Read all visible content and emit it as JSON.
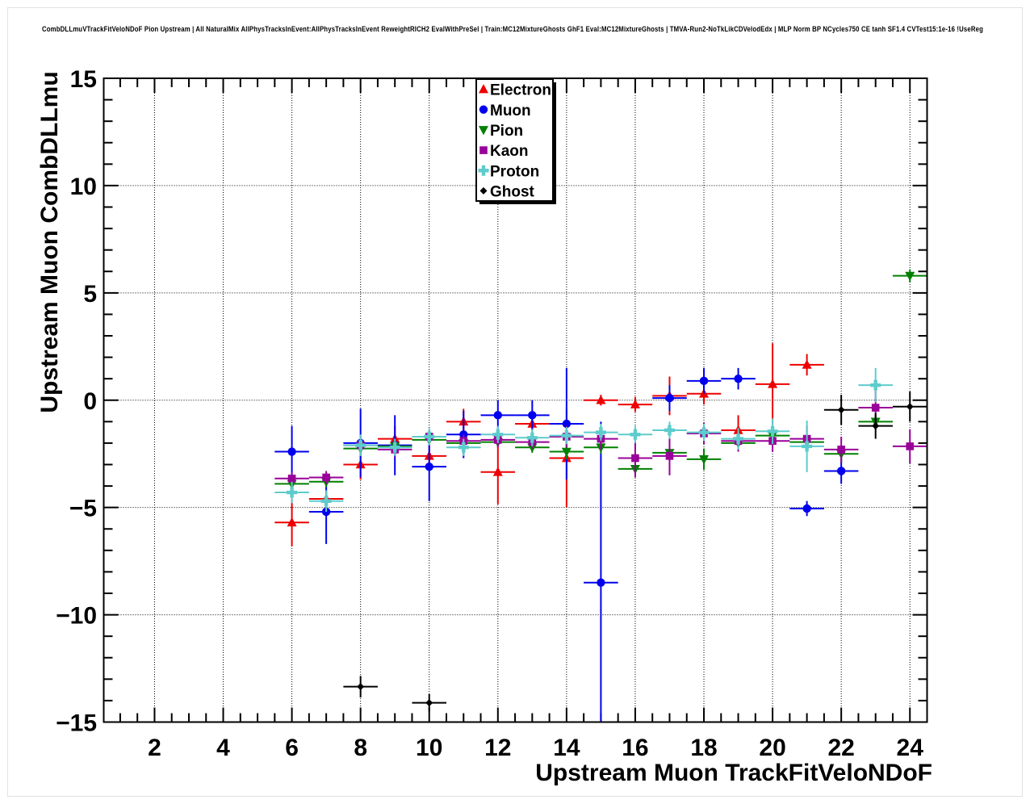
{
  "title": "CombDLLmuVTrackFitVeloNDoF Pion Upstream | All NaturalMix AllPhysTracksInEvent:AllPhysTracksInEvent ReweightRICH2 EvalWithPreSel | Train:MC12MixtureGhosts GhF1 Eval:MC12MixtureGhosts | TMVA-Run2-NoTkLikCDVelodEdx | MLP Norm BP NCycles750 CE tanh SF1.4 CVTest15:1e-16 !UseReg",
  "chart_data": {
    "type": "scatter",
    "title": "CombDLLmuVTrackFitVeloNDoF Pion Upstream",
    "xlabel": "Upstream Muon TrackFitVeloNDoF",
    "ylabel": "Upstream Muon CombDLLmu",
    "xlim": [
      0.52,
      24.5
    ],
    "ylim": [
      -15,
      15
    ],
    "x_major_ticks": [
      2,
      4,
      6,
      8,
      10,
      12,
      14,
      16,
      18,
      20,
      22,
      24
    ],
    "x_tick_labels": [
      "2",
      "4",
      "6",
      "8",
      "10",
      "12",
      "14",
      "16",
      "18",
      "20",
      "22",
      "24"
    ],
    "x_minor_step": 0.5,
    "y_major_ticks": [
      -15,
      -10,
      -5,
      0,
      5,
      10,
      15
    ],
    "y_tick_labels": [
      "−15",
      "−10",
      "−5",
      "0",
      "5",
      "10",
      "15"
    ],
    "y_minor_step": 1,
    "grid": "dotted",
    "x_bin_halfwidth": 0.5,
    "legend_position": "top-center",
    "legend_entries": [
      "Electron",
      "Muon",
      "Pion",
      "Kaon",
      "Proton",
      "Ghost"
    ],
    "series": [
      {
        "name": "Electron",
        "color": "#ee0000",
        "marker": "triangle-up",
        "points": [
          [
            6,
            -5.7,
            1.1
          ],
          [
            7,
            -4.6,
            0.4
          ],
          [
            8,
            -3.0,
            0.7
          ],
          [
            9,
            -1.8,
            0.6
          ],
          [
            10,
            -2.6,
            0.5
          ],
          [
            11,
            -1.0,
            0.6
          ],
          [
            12,
            -3.35,
            1.5
          ],
          [
            13,
            -1.1,
            0.6
          ],
          [
            14,
            -2.7,
            2.3
          ],
          [
            15,
            0.0,
            0.25
          ],
          [
            16,
            -0.2,
            0.35
          ],
          [
            17,
            0.2,
            0.9
          ],
          [
            18,
            0.3,
            0.5
          ],
          [
            19,
            -1.4,
            0.7
          ],
          [
            20,
            0.75,
            1.9
          ],
          [
            21,
            1.65,
            0.5
          ]
        ]
      },
      {
        "name": "Muon",
        "color": "#0000ee",
        "marker": "circle",
        "points": [
          [
            6,
            -2.4,
            1.2
          ],
          [
            7,
            -5.2,
            1.5
          ],
          [
            8,
            -2.0,
            1.6
          ],
          [
            9,
            -2.1,
            1.4
          ],
          [
            10,
            -3.1,
            1.6
          ],
          [
            11,
            -1.6,
            1.1
          ],
          [
            12,
            -0.7,
            0.7
          ],
          [
            13,
            -0.7,
            0.7
          ],
          [
            14,
            -1.1,
            2.6
          ],
          [
            15,
            -8.5,
            7.5
          ],
          [
            17,
            0.1,
            0.6
          ],
          [
            18,
            0.9,
            0.6
          ],
          [
            19,
            1.0,
            0.5
          ],
          [
            21,
            -5.05,
            0.35
          ],
          [
            22,
            -3.3,
            0.6
          ]
        ]
      },
      {
        "name": "Pion",
        "color": "#008000",
        "marker": "triangle-down",
        "points": [
          [
            6,
            -3.9,
            0.3
          ],
          [
            7,
            -3.8,
            0.25
          ],
          [
            8,
            -2.25,
            0.3
          ],
          [
            9,
            -2.15,
            0.2
          ],
          [
            10,
            -1.85,
            0.2
          ],
          [
            11,
            -2.0,
            0.2
          ],
          [
            12,
            -1.95,
            0.2
          ],
          [
            13,
            -2.2,
            0.25
          ],
          [
            14,
            -2.4,
            0.35
          ],
          [
            15,
            -2.2,
            0.3
          ],
          [
            16,
            -3.2,
            0.4
          ],
          [
            17,
            -2.45,
            0.4
          ],
          [
            18,
            -2.75,
            0.5
          ],
          [
            19,
            -2.0,
            0.3
          ],
          [
            20,
            -1.65,
            0.3
          ],
          [
            21,
            -1.95,
            0.3
          ],
          [
            22,
            -2.5,
            0.4
          ],
          [
            23,
            -1.0,
            0.35
          ],
          [
            24,
            5.8,
            0.3
          ]
        ]
      },
      {
        "name": "Kaon",
        "color": "#990099",
        "marker": "square",
        "points": [
          [
            6,
            -3.65,
            0.3
          ],
          [
            7,
            -3.6,
            0.3
          ],
          [
            8,
            -2.1,
            0.4
          ],
          [
            9,
            -2.3,
            0.35
          ],
          [
            10,
            -1.7,
            0.3
          ],
          [
            11,
            -1.9,
            0.3
          ],
          [
            12,
            -1.85,
            0.35
          ],
          [
            13,
            -1.95,
            0.3
          ],
          [
            14,
            -1.7,
            0.5
          ],
          [
            15,
            -1.8,
            0.5
          ],
          [
            16,
            -2.7,
            0.9
          ],
          [
            17,
            -2.6,
            0.9
          ],
          [
            18,
            -1.55,
            0.5
          ],
          [
            19,
            -1.9,
            0.5
          ],
          [
            20,
            -1.9,
            0.5
          ],
          [
            21,
            -1.8,
            0.6
          ],
          [
            22,
            -2.3,
            0.6
          ],
          [
            23,
            -0.35,
            0.9
          ],
          [
            24,
            -2.15,
            0.8
          ]
        ]
      },
      {
        "name": "Proton",
        "color": "#5ecccc",
        "marker": "cross",
        "points": [
          [
            6,
            -4.3,
            0.5
          ],
          [
            7,
            -4.7,
            0.5
          ],
          [
            8,
            -2.1,
            0.5
          ],
          [
            9,
            -2.2,
            0.4
          ],
          [
            10,
            -1.7,
            0.4
          ],
          [
            11,
            -2.2,
            0.4
          ],
          [
            12,
            -1.6,
            0.4
          ],
          [
            13,
            -1.75,
            0.4
          ],
          [
            14,
            -1.65,
            0.4
          ],
          [
            15,
            -1.5,
            0.4
          ],
          [
            16,
            -1.6,
            0.4
          ],
          [
            17,
            -1.4,
            0.4
          ],
          [
            18,
            -1.5,
            0.4
          ],
          [
            19,
            -1.8,
            0.5
          ],
          [
            20,
            -1.45,
            0.6
          ],
          [
            21,
            -2.15,
            1.2
          ],
          [
            23,
            0.7,
            0.8
          ]
        ]
      },
      {
        "name": "Ghost",
        "color": "#000000",
        "marker": "diamond",
        "points": [
          [
            8,
            -13.35,
            0.5
          ],
          [
            10,
            -14.1,
            0.4
          ],
          [
            22,
            -0.45,
            0.7
          ],
          [
            23,
            -1.2,
            0.6
          ],
          [
            24,
            -0.3,
            0.7
          ]
        ]
      }
    ]
  }
}
